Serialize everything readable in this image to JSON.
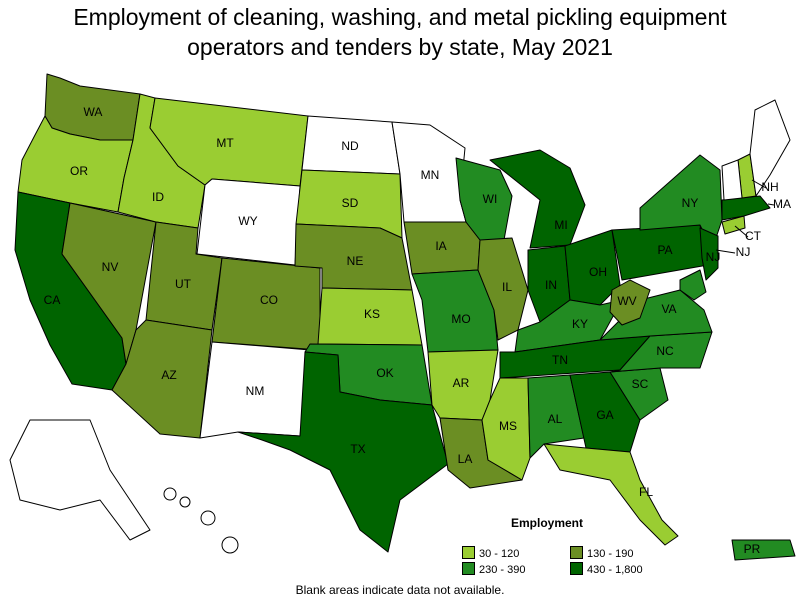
{
  "title_line1": "Employment of cleaning, washing, and metal pickling equipment",
  "title_line2": "operators and tenders by state, May 2021",
  "legend": {
    "title": "Employment",
    "items": [
      {
        "label": "30 - 120",
        "color": "#9ACD32"
      },
      {
        "label": "130 - 190",
        "color": "#6B8E23"
      },
      {
        "label": "230 - 390",
        "color": "#228B22"
      },
      {
        "label": "430 - 1,800",
        "color": "#006400"
      }
    ]
  },
  "note": "Blank areas indicate data not available.",
  "states": {
    "WA": "130 - 190",
    "OR": "30 - 120",
    "CA": "430 - 1,800",
    "NV": "130 - 190",
    "ID": "30 - 120",
    "MT": "30 - 120",
    "WY": null,
    "UT": "130 - 190",
    "AZ": "130 - 190",
    "CO": "130 - 190",
    "NM": null,
    "ND": null,
    "SD": "30 - 120",
    "NE": "130 - 190",
    "KS": "30 - 120",
    "OK": "230 - 390",
    "TX": "430 - 1,800",
    "MN": null,
    "IA": "130 - 190",
    "MO": "230 - 390",
    "AR": "30 - 120",
    "LA": "130 - 190",
    "WI": "230 - 390",
    "IL": "130 - 190",
    "MI": "430 - 1,800",
    "IN": "430 - 1,800",
    "OH": "430 - 1,800",
    "KY": "230 - 390",
    "TN": "430 - 1,800",
    "MS": "30 - 120",
    "AL": "230 - 390",
    "GA": "430 - 1,800",
    "FL": "30 - 120",
    "SC": "230 - 390",
    "NC": "230 - 390",
    "VA": "230 - 390",
    "WV": "130 - 190",
    "PA": "430 - 1,800",
    "NY": "230 - 390",
    "NJ": "430 - 1,800",
    "CT": "30 - 120",
    "MA": "430 - 1,800",
    "NH": "30 - 120",
    "VT": null,
    "ME": null,
    "RI": null,
    "DE": null,
    "MD": "230 - 390",
    "AK": null,
    "HI": null,
    "PR": "230 - 390"
  }
}
